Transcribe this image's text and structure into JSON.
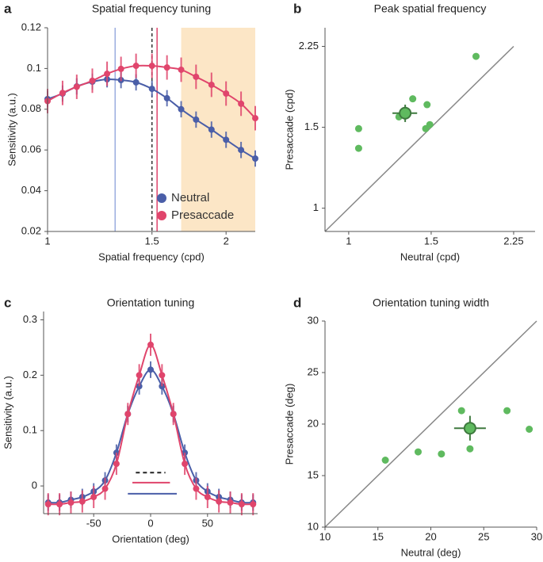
{
  "chart_data": [
    {
      "type": "line",
      "panel": "a",
      "title": "Spatial frequency tuning",
      "x_label": "Spatial frequency (cpd)",
      "y_label": "Sensitivity (a.u.)",
      "x": [
        1,
        1.06,
        1.12,
        1.19,
        1.26,
        1.33,
        1.41,
        1.5,
        1.59,
        1.68,
        1.78,
        1.89,
        2,
        2.12,
        2.24
      ],
      "xscale": "log",
      "xlim": [
        1,
        2.24
      ],
      "xticks": [
        1,
        1.5,
        2
      ],
      "ylim": [
        0.02,
        0.12
      ],
      "yticks": [
        0.02,
        0.04,
        0.06,
        0.08,
        0.1,
        0.12
      ],
      "series": [
        {
          "name": "Neutral",
          "color": "#4a5ea8",
          "values": [
            0.085,
            0.0877,
            0.0912,
            0.0935,
            0.0947,
            0.0943,
            0.0932,
            0.09,
            0.0854,
            0.08,
            0.0749,
            0.07,
            0.065,
            0.06,
            0.0558
          ],
          "errors": [
            0.004,
            0.004,
            0.004,
            0.004,
            0.004,
            0.004,
            0.004,
            0.004,
            0.004,
            0.004,
            0.004,
            0.004,
            0.004,
            0.004,
            0.004
          ]
        },
        {
          "name": "Presaccade",
          "color": "#e0456c",
          "values": [
            0.084,
            0.088,
            0.091,
            0.094,
            0.0974,
            0.0998,
            0.1013,
            0.1013,
            0.1005,
            0.0994,
            0.0959,
            0.092,
            0.0877,
            0.0827,
            0.0756
          ],
          "errors": [
            0.006,
            0.006,
            0.006,
            0.006,
            0.006,
            0.006,
            0.006,
            0.006,
            0.006,
            0.006,
            0.006,
            0.006,
            0.006,
            0.006,
            0.006
          ]
        }
      ],
      "vlines": [
        {
          "x": 1.3,
          "color": "#9aaee0"
        },
        {
          "x": 1.5,
          "color": "#333333",
          "dashed": true
        },
        {
          "x": 1.53,
          "color": "#e0456c"
        }
      ],
      "shaded_x": [
        1.68,
        2.24
      ],
      "shade_color": "#fce6c6",
      "legend": "lower right"
    },
    {
      "type": "scatter",
      "panel": "b",
      "title": "Peak spatial frequency",
      "x_label": "Neutral (cpd)",
      "y_label": "Presaccade (cpd)",
      "xscale": "log",
      "yscale": "log",
      "xlim": [
        0.89,
        2.5
      ],
      "ylim": [
        0.89,
        2.47
      ],
      "xticks": [
        1,
        1.5,
        2.25
      ],
      "yticks": [
        1,
        1.5,
        2.25
      ],
      "x": [
        1.05,
        1.05,
        1.28,
        1.37,
        1.46,
        1.47,
        1.49,
        1.87
      ],
      "values": [
        1.49,
        1.35,
        1.58,
        1.73,
        1.49,
        1.68,
        1.52,
        2.14
      ],
      "color": "#5fba5f",
      "mean": {
        "x": 1.32,
        "y": 1.61,
        "x_error": 0.08,
        "y_error": 0.07
      },
      "identity_line": true
    },
    {
      "type": "line",
      "panel": "c",
      "title": "Orientation tuning",
      "x_label": "Orientation (deg)",
      "y_label": "Sensitivity (a.u.)",
      "x": [
        -90,
        -80,
        -70,
        -60,
        -50,
        -40,
        -30,
        -20,
        -10,
        0,
        10,
        20,
        30,
        40,
        50,
        60,
        70,
        80,
        90
      ],
      "xlim": [
        -94,
        94
      ],
      "xticks": [
        -50,
        0,
        50
      ],
      "ylim": [
        -0.05,
        0.315
      ],
      "yticks": [
        0,
        0.1,
        0.2,
        0.3
      ],
      "series": [
        {
          "name": "Neutral",
          "color": "#4a5ea8",
          "values": [
            -0.03,
            -0.03,
            -0.025,
            -0.02,
            -0.01,
            0.01,
            0.06,
            0.13,
            0.18,
            0.21,
            0.18,
            0.13,
            0.06,
            0.01,
            -0.01,
            -0.02,
            -0.025,
            -0.03,
            -0.03
          ],
          "errors": [
            0.015,
            0.015,
            0.015,
            0.015,
            0.015,
            0.015,
            0.015,
            0.015,
            0.015,
            0.015,
            0.015,
            0.015,
            0.015,
            0.015,
            0.015,
            0.015,
            0.015,
            0.015,
            0.015
          ]
        },
        {
          "name": "Presaccade",
          "color": "#e0456c",
          "values": [
            -0.033,
            -0.033,
            -0.03,
            -0.028,
            -0.02,
            -0.005,
            0.04,
            0.13,
            0.2,
            0.255,
            0.2,
            0.13,
            0.04,
            -0.005,
            -0.02,
            -0.028,
            -0.03,
            -0.033,
            -0.033
          ],
          "errors": [
            0.02,
            0.02,
            0.02,
            0.02,
            0.02,
            0.02,
            0.02,
            0.02,
            0.02,
            0.02,
            0.02,
            0.02,
            0.02,
            0.02,
            0.02,
            0.02,
            0.02,
            0.02,
            0.02
          ]
        }
      ],
      "width_lines": [
        {
          "x": [
            -13,
            13
          ],
          "y": 0.024,
          "color": "#222222",
          "dashed": true
        },
        {
          "x": [
            -16,
            17
          ],
          "y": 0.006,
          "color": "#e0456c"
        },
        {
          "x": [
            -20,
            23
          ],
          "y": -0.014,
          "color": "#4a5ea8"
        }
      ]
    },
    {
      "type": "scatter",
      "panel": "d",
      "title": "Orientation tuning width",
      "x_label": "Neutral (deg)",
      "y_label": "Presaccade (deg)",
      "xlim": [
        10,
        30
      ],
      "ylim": [
        10,
        30
      ],
      "xticks": [
        10,
        15,
        20,
        25,
        30
      ],
      "yticks": [
        10,
        15,
        20,
        25,
        30
      ],
      "x": [
        15.7,
        18.8,
        21,
        22.9,
        23.7,
        27.2,
        29.3
      ],
      "values": [
        16.5,
        17.3,
        17.1,
        21.3,
        17.6,
        21.3,
        19.5
      ],
      "color": "#5fba5f",
      "mean": {
        "x": 23.7,
        "y": 19.6,
        "x_error": 1.5,
        "y_error": 1.2
      },
      "identity_line": true
    }
  ]
}
